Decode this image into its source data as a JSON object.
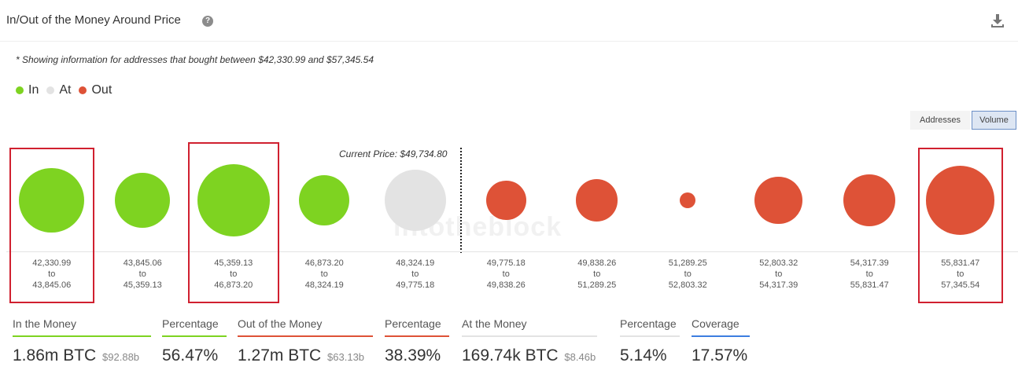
{
  "header": {
    "title": "In/Out of the Money Around Price",
    "help_glyph": "?"
  },
  "note": "* Showing information for addresses that bought between $42,330.99 and $57,345.54",
  "legend": [
    {
      "label": "In",
      "color": "#7ed321"
    },
    {
      "label": "At",
      "color": "#e3e3e3"
    },
    {
      "label": "Out",
      "color": "#de5237"
    }
  ],
  "toggle": {
    "addresses": "Addresses",
    "volume": "Volume",
    "selected": "Volume"
  },
  "watermark": "intotheblock",
  "chart_data": {
    "type": "bubble",
    "current_price_label": "Current Price: $49,734.80",
    "current_price": 49734.8,
    "buckets": [
      {
        "from": "$42,330.99",
        "to": "$43,845.06",
        "status": "In",
        "color": "#7ed321",
        "relative_size": 0.9
      },
      {
        "from": "$43,845.06",
        "to": "$45,359.13",
        "status": "In",
        "color": "#7ed321",
        "relative_size": 0.76
      },
      {
        "from": "$45,359.13",
        "to": "$46,873.20",
        "status": "In",
        "color": "#7ed321",
        "relative_size": 1.0
      },
      {
        "from": "$46,873.20",
        "to": "$48,324.19",
        "status": "In",
        "color": "#7ed321",
        "relative_size": 0.7
      },
      {
        "from": "$48,324.19",
        "to": "$49,775.18",
        "status": "At",
        "color": "#e3e3e3",
        "relative_size": 0.85
      },
      {
        "from": "$49,775.18",
        "to": "$49,838.26",
        "status": "Out",
        "color": "#de5237",
        "relative_size": 0.55
      },
      {
        "from": "$49,838.26",
        "to": "$51,289.25",
        "status": "Out",
        "color": "#de5237",
        "relative_size": 0.58
      },
      {
        "from": "$51,289.25",
        "to": "$52,803.32",
        "status": "Out",
        "color": "#de5237",
        "relative_size": 0.22
      },
      {
        "from": "$52,803.32",
        "to": "$54,317.39",
        "status": "Out",
        "color": "#de5237",
        "relative_size": 0.66
      },
      {
        "from": "$54,317.39",
        "to": "$55,831.47",
        "status": "Out",
        "color": "#de5237",
        "relative_size": 0.72
      },
      {
        "from": "$55,831.47",
        "to": "$57,345.54",
        "status": "Out",
        "color": "#de5237",
        "relative_size": 0.95
      }
    ],
    "range_connector": "to",
    "highlighted_buckets": [
      0,
      2,
      10
    ]
  },
  "stats": [
    {
      "label": "In the Money",
      "value": "1.86m BTC",
      "sub": "$92.88b",
      "color": "#7ed321"
    },
    {
      "label": "Percentage",
      "value": "56.47%",
      "sub": "",
      "color": "#7ed321"
    },
    {
      "label": "Out of the Money",
      "value": "1.27m BTC",
      "sub": "$63.13b",
      "color": "#de5237"
    },
    {
      "label": "Percentage",
      "value": "38.39%",
      "sub": "",
      "color": "#de5237"
    },
    {
      "label": "At the Money",
      "value": "169.74k BTC",
      "sub": "$8.46b",
      "color": "#e3e3e3"
    },
    {
      "label": "Percentage",
      "value": "5.14%",
      "sub": "",
      "color": "#e3e3e3"
    },
    {
      "label": "Coverage",
      "value": "17.57%",
      "sub": "",
      "color": "#3c7ee0"
    }
  ]
}
